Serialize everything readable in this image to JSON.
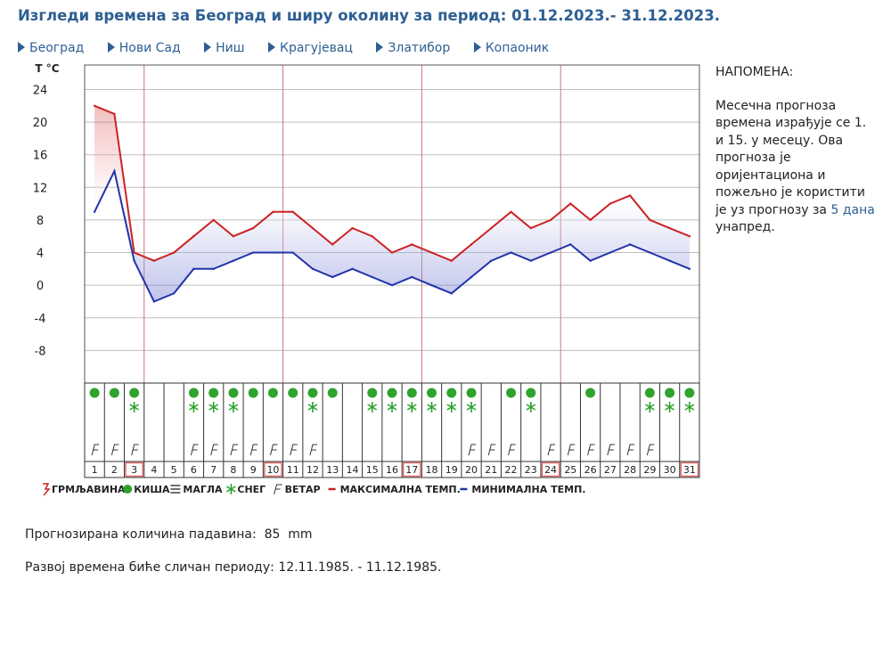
{
  "header": {
    "title": "Изгледи времена за Београд и ширу околину за период: 01.12.2023.- 31.12.2023."
  },
  "nav": {
    "items": [
      "Београд",
      "Нови Сад",
      "Ниш",
      "Крагујевац",
      "Златибор",
      "Копаоник"
    ]
  },
  "note": {
    "title": "НАПОМЕНА:",
    "text_before": "Месечна прогноза времена израђује се 1. и 15. у месецу. Ова прогноза је оријентациона и пожељно је користити је уз прогнозу за ",
    "link": "5 дана",
    "text_after": " унапред."
  },
  "precip": {
    "label": "Прогнозирана количина падавина:",
    "value": "85",
    "unit": "mm"
  },
  "analog": {
    "label": "Развој времена биће сличан периоду:",
    "value": "12.11.1985. - 11.12.1985."
  },
  "chart_data": {
    "type": "line",
    "ylabel": "T °C",
    "ylim": [
      -12,
      27
    ],
    "yticks": [
      24,
      20,
      16,
      12,
      8,
      4,
      0,
      -4,
      -8
    ],
    "grid": true,
    "colors": {
      "max": "#cc2222",
      "min": "#2233aa",
      "weekGrid": "#cc7777",
      "rain": "#2ea32e",
      "snow": "#2ea32e"
    },
    "x": [
      1,
      2,
      3,
      4,
      5,
      6,
      7,
      8,
      9,
      10,
      11,
      12,
      13,
      14,
      15,
      16,
      17,
      18,
      19,
      20,
      21,
      22,
      23,
      24,
      25,
      26,
      27,
      28,
      29,
      30,
      31
    ],
    "series": [
      {
        "name": "МАКСИМАЛНА ТЕМП.",
        "values": [
          22,
          21,
          4,
          3,
          4,
          6,
          8,
          6,
          7,
          9,
          9,
          7,
          5,
          7,
          6,
          4,
          5,
          4,
          3,
          5,
          7,
          9,
          7,
          8,
          10,
          8,
          10,
          11,
          8,
          7,
          6
        ]
      },
      {
        "name": "МИНИМАЛНА ТЕМП.",
        "values": [
          9,
          14,
          3,
          -2,
          -1,
          2,
          2,
          3,
          4,
          4,
          4,
          2,
          1,
          2,
          1,
          0,
          1,
          0,
          -1,
          1,
          3,
          4,
          3,
          4,
          5,
          3,
          4,
          5,
          4,
          3,
          2
        ]
      }
    ],
    "rain_days": [
      1,
      2,
      3,
      6,
      7,
      8,
      9,
      10,
      11,
      12,
      13,
      15,
      16,
      17,
      18,
      19,
      20,
      22,
      23,
      26,
      29,
      30,
      31
    ],
    "snow_days": [
      3,
      6,
      7,
      8,
      12,
      15,
      16,
      17,
      18,
      19,
      20,
      23,
      29,
      30,
      31
    ],
    "wind_days": [
      1,
      2,
      3,
      6,
      7,
      8,
      9,
      10,
      11,
      12,
      20,
      21,
      22,
      24,
      25,
      26,
      27,
      28,
      29
    ],
    "highlighted_days": [
      3,
      10,
      17,
      24,
      31
    ],
    "legend": [
      {
        "icon": "thunder",
        "label": "ГРМЉАВИНА"
      },
      {
        "icon": "rain",
        "label": "КИША"
      },
      {
        "icon": "fog",
        "label": "МАГЛА"
      },
      {
        "icon": "snow",
        "label": "СНЕГ"
      },
      {
        "icon": "wind",
        "label": "ВЕТАР"
      },
      {
        "icon": "max-line",
        "label": "МАКСИМАЛНА ТЕМП."
      },
      {
        "icon": "min-line",
        "label": "МИНИМАЛНА ТЕМП."
      }
    ]
  }
}
